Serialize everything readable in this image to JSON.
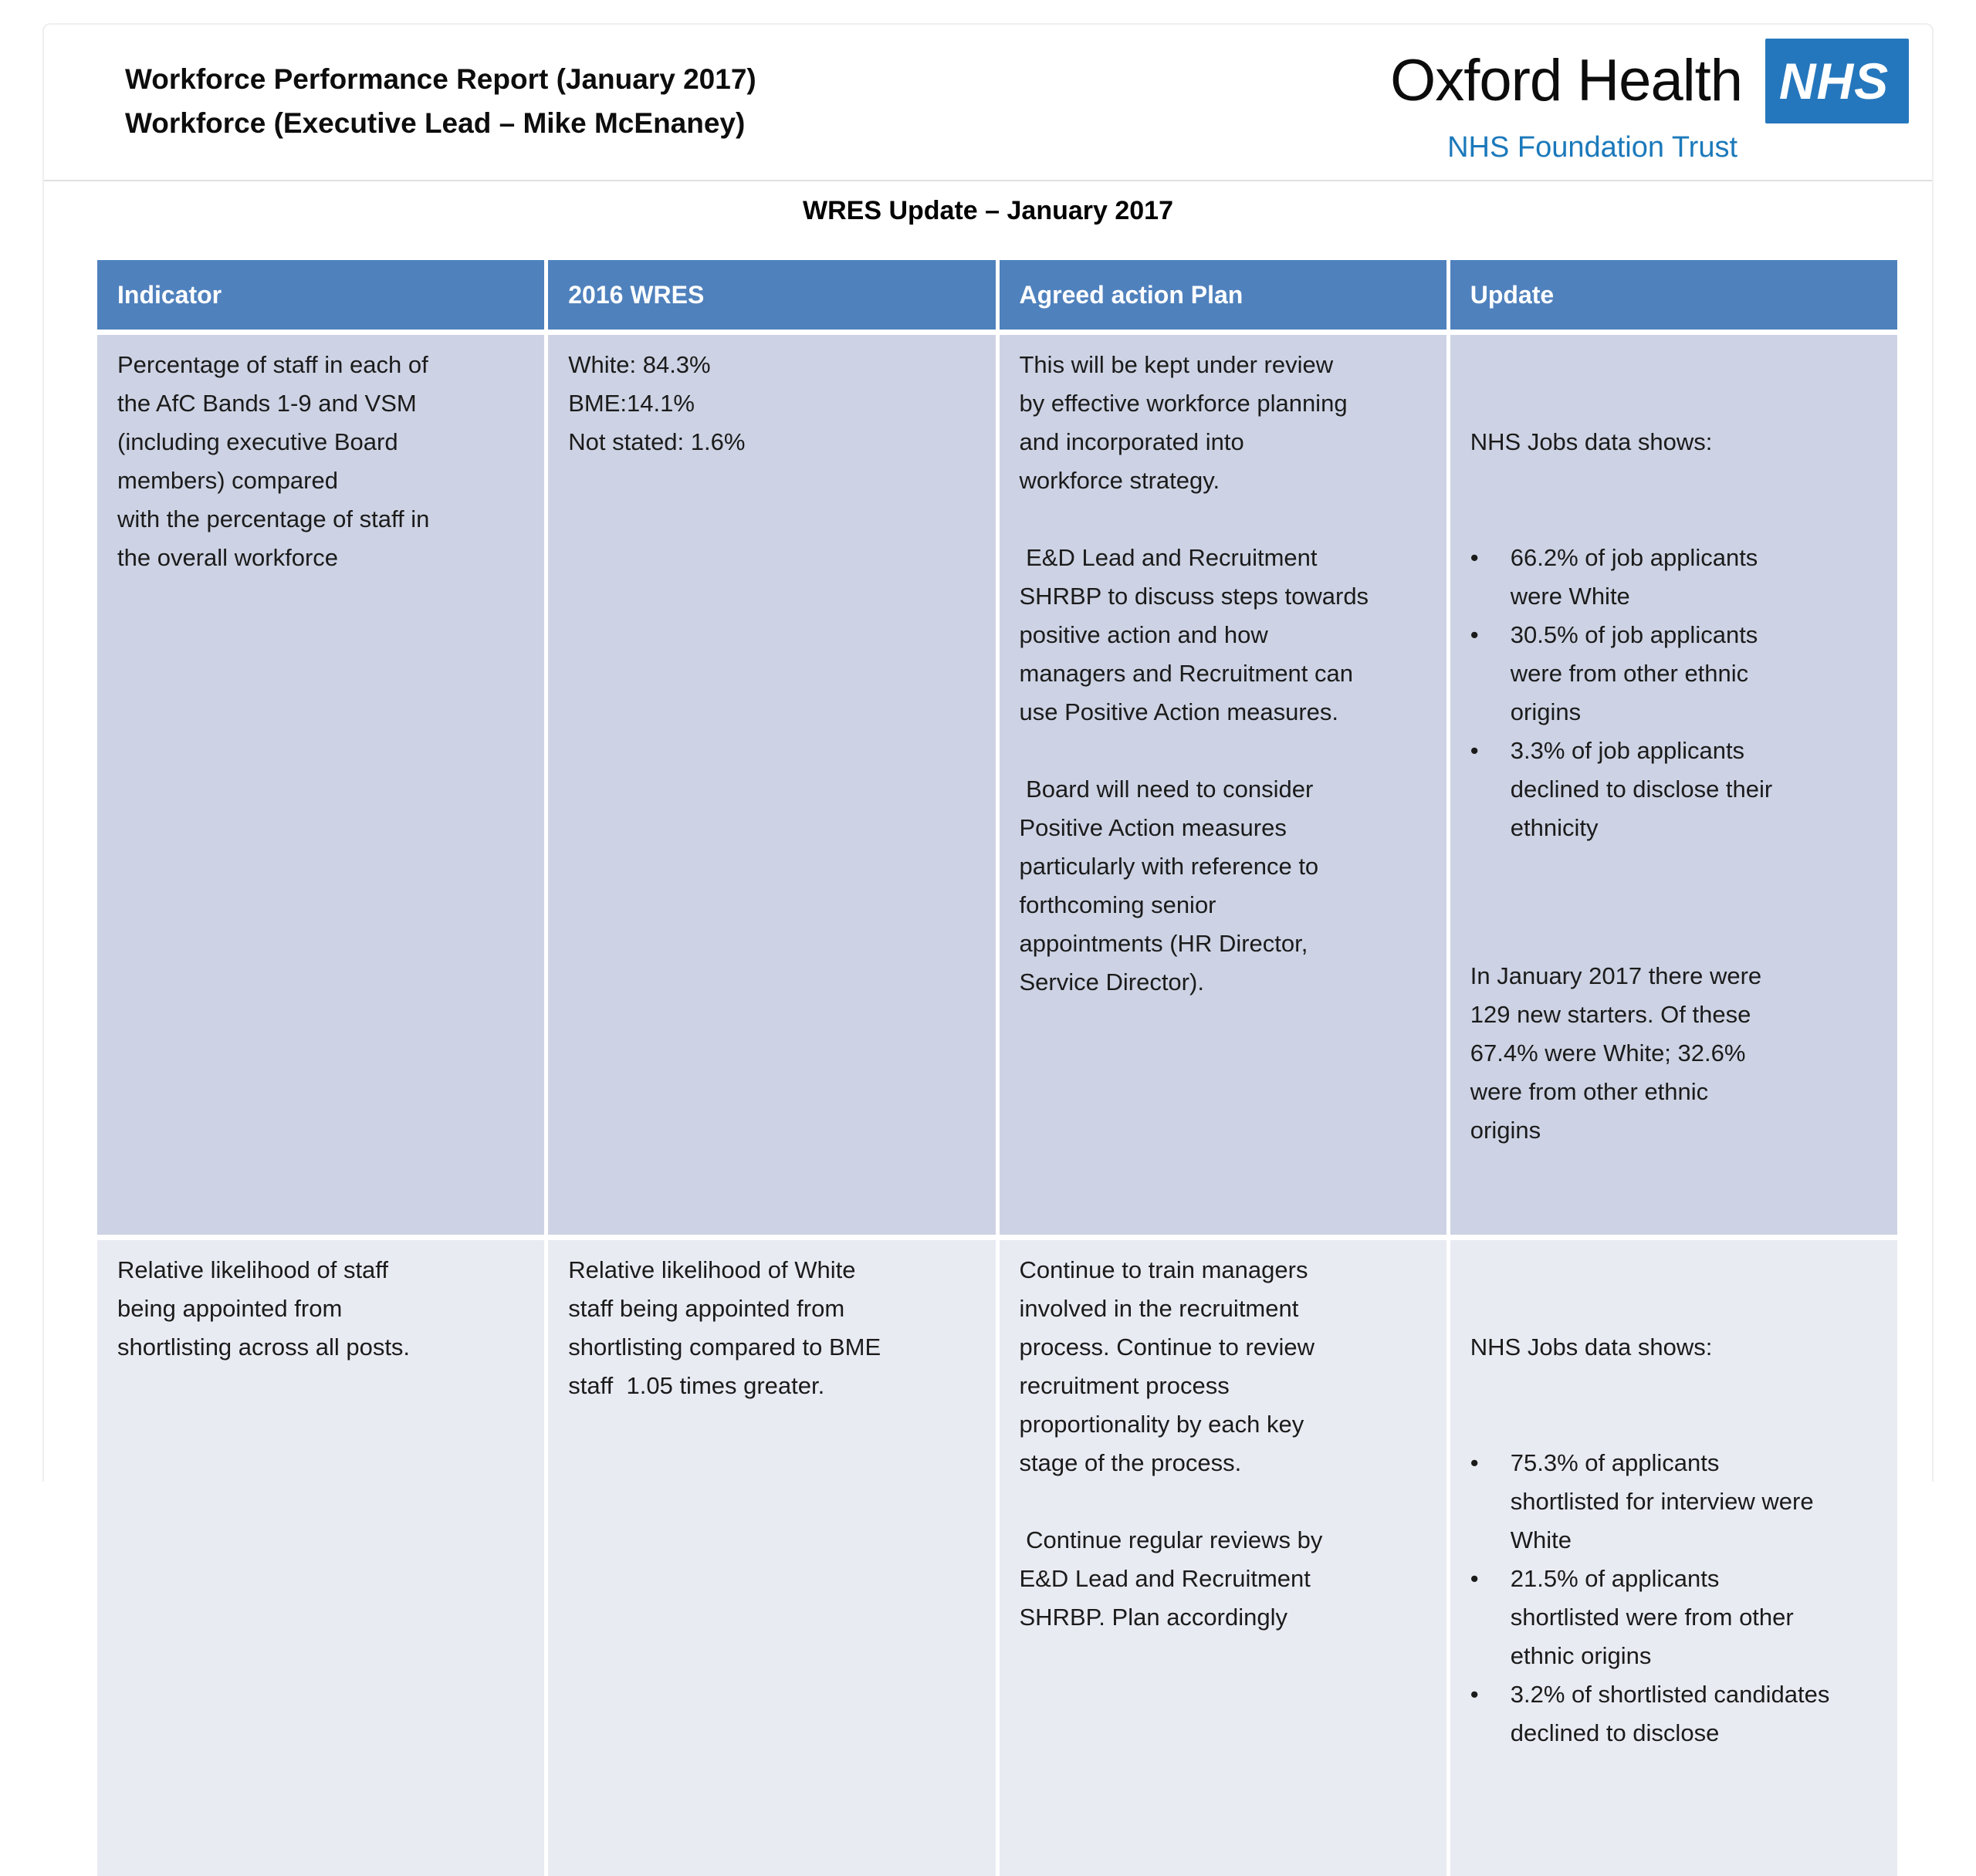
{
  "theme": {
    "header_bg": "#4f81bd",
    "row1_bg": "#cdd3e4",
    "row2_bg": "#e9ebf3",
    "nhs_blue": "#2577bd",
    "nhs_subtitle_blue": "#1b79bb"
  },
  "page": {
    "title": "Workforce Performance Report (January 2017)\nWorkforce (Executive Lead – Mike McEnaney)",
    "section_title": "WRES Update – January 2017"
  },
  "logo": {
    "org_name": "Oxford Health",
    "nhs_acronym": "NHS",
    "subtitle": "NHS Foundation Trust"
  },
  "table": {
    "headers": [
      "Indicator",
      "2016 WRES",
      "Agreed action Plan",
      "Update"
    ],
    "rows": [
      {
        "indicator": "Percentage of staff in each of\nthe AfC Bands 1-9 and VSM\n(including executive Board\nmembers) compared\nwith the percentage of staff in\nthe overall workforce",
        "wres_2016": "White: 84.3%\nBME:14.1%\nNot stated: 1.6%",
        "action_plan": "This will be kept under review\nby effective workforce planning\nand incorporated into\nworkforce strategy.\n\n E&D Lead and Recruitment\nSHRBP to discuss steps towards\npositive action and how\nmanagers and Recruitment can\nuse Positive Action measures.\n\n Board will need to consider\nPositive Action measures\nparticularly with reference to\nforthcoming senior\nappointments (HR Director,\nService Director).",
        "update": {
          "intro": "NHS Jobs data shows:",
          "bullets": [
            "66.2% of job applicants\nwere White",
            "30.5% of job applicants\nwere from other ethnic\norigins",
            "3.3% of job applicants\ndeclined to disclose their\nethnicity"
          ],
          "footer": "In January 2017 there were\n129 new starters. Of these\n67.4% were White; 32.6%\nwere from other ethnic\norigins"
        }
      },
      {
        "indicator": "Relative likelihood of staff\nbeing appointed from\nshortlisting across all posts.",
        "wres_2016": "Relative likelihood of White\nstaff being appointed from\nshortlisting compared to BME\nstaff  1.05 times greater.",
        "action_plan": "Continue to train managers\ninvolved in the recruitment\nprocess. Continue to review\nrecruitment process\nproportionality by each key\nstage of the process.\n\n Continue regular reviews by\nE&D Lead and Recruitment\nSHRBP. Plan accordingly",
        "update": {
          "intro": "NHS Jobs data shows:",
          "bullets": [
            "75.3% of applicants\nshortlisted for interview were\nWhite",
            "21.5% of applicants\nshortlisted were from other\nethnic origins",
            "3.2% of shortlisted candidates\ndeclined to disclose"
          ],
          "footer": ""
        }
      }
    ]
  }
}
